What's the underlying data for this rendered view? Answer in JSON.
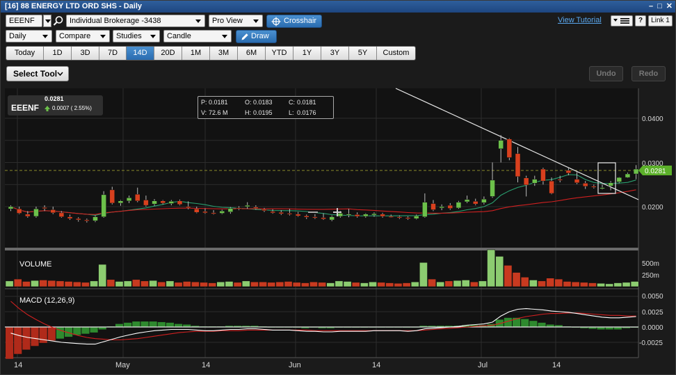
{
  "window": {
    "title": "[16] 88 ENERGY LTD ORD SHS - Daily",
    "controls": [
      "–",
      "□",
      "✕"
    ]
  },
  "toolbar1": {
    "symbol": "EEENF",
    "account": "Individual Brokerage -3438",
    "view": "Pro View",
    "crosshair": "Crosshair",
    "tutorial": "View Tutorial",
    "help": "?",
    "link": "Link 1"
  },
  "toolbar2": {
    "interval": "Daily",
    "compare": "Compare",
    "studies": "Studies",
    "chart_type": "Candle",
    "draw": "Draw"
  },
  "ranges": [
    "Today",
    "1D",
    "3D",
    "7D",
    "14D",
    "20D",
    "1M",
    "3M",
    "6M",
    "YTD",
    "1Y",
    "3Y",
    "5Y",
    "Custom"
  ],
  "active_range": "14D",
  "select_tool": "Select Tool",
  "undo": "Undo",
  "redo": "Redo",
  "symbol_box": {
    "symbol": "EEENF",
    "last": "0.0281",
    "change": "0.0007 ( 2.55%)"
  },
  "ohlc": {
    "p_label": "P:",
    "p": "0.0181",
    "o_label": "O:",
    "o": "0.0183",
    "c_label": "C:",
    "c": "0.0181",
    "v_label": "V:",
    "v": "72.6 M",
    "h_label": "H:",
    "h": "0.0195",
    "l_label": "L:",
    "l": "0.0176"
  },
  "price_axis": [
    "0.0400",
    "0.0300",
    "0.0200"
  ],
  "last_price_tag": "0.0281",
  "volume_label": "VOLUME",
  "volume_axis": [
    "500m",
    "250m"
  ],
  "macd_label": "MACD (12,26,9)",
  "macd_axis": [
    "0.0050",
    "0.0025",
    "0.0000",
    "-0.0025"
  ],
  "x_axis": [
    "14",
    "May",
    "14",
    "Jun",
    "14",
    "Jul",
    "14"
  ],
  "colors": {
    "up": "#6cc04a",
    "down": "#d8401e",
    "accent": "#2a6cb0",
    "macd_line": "#ffffff",
    "signal_line": "#d02020",
    "ma_short": "#2aa070",
    "ma_long": "#d02020"
  },
  "chart_data": {
    "type": "candlestick",
    "price_ylim": [
      0.0155,
      0.0415
    ],
    "candles": [
      [
        0.0195,
        0.0203,
        0.019,
        0.02
      ],
      [
        0.0195,
        0.02,
        0.0183,
        0.0185
      ],
      [
        0.0183,
        0.019,
        0.0175,
        0.0178
      ],
      [
        0.0178,
        0.02,
        0.0175,
        0.0195
      ],
      [
        0.0198,
        0.0203,
        0.019,
        0.0196
      ],
      [
        0.0193,
        0.02,
        0.0183,
        0.0186
      ],
      [
        0.0186,
        0.019,
        0.0175,
        0.0177
      ],
      [
        0.0177,
        0.0182,
        0.017,
        0.0173
      ],
      [
        0.0173,
        0.0176,
        0.0166,
        0.017
      ],
      [
        0.017,
        0.0173,
        0.0164,
        0.0168
      ],
      [
        0.0168,
        0.018,
        0.0165,
        0.0177
      ],
      [
        0.0177,
        0.0235,
        0.0175,
        0.0227
      ],
      [
        0.0238,
        0.0245,
        0.0205,
        0.0208
      ],
      [
        0.0208,
        0.0215,
        0.0202,
        0.0213
      ],
      [
        0.0213,
        0.0225,
        0.0208,
        0.022
      ],
      [
        0.0228,
        0.0243,
        0.021,
        0.0213
      ],
      [
        0.0215,
        0.0225,
        0.02,
        0.0203
      ],
      [
        0.0206,
        0.0217,
        0.0202,
        0.0213
      ],
      [
        0.0213,
        0.0215,
        0.0205,
        0.0208
      ],
      [
        0.0207,
        0.0215,
        0.0203,
        0.0212
      ],
      [
        0.0213,
        0.0216,
        0.0203,
        0.0205
      ],
      [
        0.02,
        0.0212,
        0.0194,
        0.0197
      ],
      [
        0.0195,
        0.02,
        0.0185,
        0.0187
      ],
      [
        0.0189,
        0.0196,
        0.0184,
        0.0186
      ],
      [
        0.0186,
        0.0192,
        0.0182,
        0.0184
      ],
      [
        0.0185,
        0.0193,
        0.0183,
        0.019
      ],
      [
        0.0188,
        0.0199,
        0.0184,
        0.0196
      ],
      [
        0.0197,
        0.0201,
        0.0192,
        0.0195
      ],
      [
        0.02,
        0.021,
        0.0195,
        0.0203
      ],
      [
        0.0199,
        0.0203,
        0.0193,
        0.0196
      ],
      [
        0.0194,
        0.0197,
        0.0188,
        0.0191
      ],
      [
        0.0189,
        0.0194,
        0.0184,
        0.0186
      ],
      [
        0.0187,
        0.0192,
        0.0181,
        0.0184
      ],
      [
        0.0185,
        0.0195,
        0.018,
        0.0183
      ],
      [
        0.0183,
        0.0188,
        0.0177,
        0.0179
      ],
      [
        0.0179,
        0.0182,
        0.0172,
        0.0176
      ],
      [
        0.0177,
        0.0183,
        0.0172,
        0.0175
      ],
      [
        0.0175,
        0.0185,
        0.017,
        0.0172
      ],
      [
        0.017,
        0.018,
        0.0167,
        0.0177
      ],
      [
        0.0178,
        0.019,
        0.0175,
        0.0185
      ],
      [
        0.0181,
        0.0195,
        0.0176,
        0.0183
      ],
      [
        0.0182,
        0.0187,
        0.0175,
        0.0178
      ],
      [
        0.0178,
        0.0185,
        0.0175,
        0.0183
      ],
      [
        0.0181,
        0.0187,
        0.0177,
        0.0184
      ],
      [
        0.0183,
        0.0186,
        0.0175,
        0.0178
      ],
      [
        0.0178,
        0.0182,
        0.0175,
        0.0177
      ],
      [
        0.0177,
        0.018,
        0.0172,
        0.0175
      ],
      [
        0.0175,
        0.0178,
        0.017,
        0.0173
      ],
      [
        0.0173,
        0.0182,
        0.0171,
        0.0179
      ],
      [
        0.0177,
        0.023,
        0.0175,
        0.021
      ],
      [
        0.0207,
        0.0215,
        0.019,
        0.0193
      ],
      [
        0.0197,
        0.0205,
        0.0192,
        0.02
      ],
      [
        0.0203,
        0.0208,
        0.0193,
        0.0196
      ],
      [
        0.0197,
        0.0213,
        0.0195,
        0.021
      ],
      [
        0.0211,
        0.0225,
        0.0208,
        0.0216
      ],
      [
        0.0212,
        0.0218,
        0.0203,
        0.0206
      ],
      [
        0.0209,
        0.0223,
        0.0205,
        0.0217
      ],
      [
        0.0223,
        0.03,
        0.022,
        0.026
      ],
      [
        0.0331,
        0.0362,
        0.03,
        0.035
      ],
      [
        0.0353,
        0.0355,
        0.0305,
        0.0311
      ],
      [
        0.032,
        0.0335,
        0.0255,
        0.0268
      ],
      [
        0.0265,
        0.027,
        0.0223,
        0.0249
      ],
      [
        0.0253,
        0.027,
        0.0247,
        0.0262
      ],
      [
        0.0285,
        0.0288,
        0.025,
        0.0258
      ],
      [
        0.0258,
        0.0266,
        0.0228,
        0.023
      ],
      [
        0.0262,
        0.027,
        0.0255,
        0.026
      ],
      [
        0.0282,
        0.0287,
        0.0271,
        0.0276
      ],
      [
        0.0262,
        0.0278,
        0.0251,
        0.0254
      ],
      [
        0.0253,
        0.0258,
        0.024,
        0.0246
      ],
      [
        0.0246,
        0.025,
        0.0241,
        0.0245
      ],
      [
        0.0242,
        0.025,
        0.0239,
        0.0243
      ],
      [
        0.0247,
        0.0258,
        0.0237,
        0.0254
      ],
      [
        0.0256,
        0.0267,
        0.0253,
        0.0266
      ],
      [
        0.0266,
        0.0277,
        0.0265,
        0.0274
      ],
      [
        0.0274,
        0.0294,
        0.0262,
        0.0285
      ]
    ],
    "volume_ylim": [
      0,
      800
    ],
    "volume": [
      120,
      160,
      110,
      130,
      140,
      130,
      120,
      110,
      100,
      90,
      120,
      470,
      150,
      110,
      120,
      150,
      120,
      130,
      100,
      120,
      90,
      110,
      100,
      90,
      80,
      100,
      110,
      90,
      120,
      100,
      100,
      90,
      100,
      110,
      90,
      80,
      100,
      90,
      80,
      120,
      110,
      90,
      80,
      100,
      90,
      80,
      70,
      80,
      100,
      510,
      160,
      100,
      120,
      130,
      140,
      100,
      120,
      780,
      640,
      450,
      300,
      200,
      140,
      120,
      180,
      160,
      110,
      100,
      90,
      80,
      70,
      60,
      80,
      90,
      110
    ],
    "macd_ylim": [
      -0.0036,
      0.0062
    ],
    "macd": [
      -0.001,
      -0.0014,
      -0.0017,
      -0.0019,
      -0.0021,
      -0.0023,
      -0.0025,
      -0.0026,
      -0.0027,
      -0.0028,
      -0.0028,
      -0.0024,
      -0.002,
      -0.0016,
      -0.0013,
      -0.001,
      -0.0008,
      -0.0006,
      -0.0005,
      -0.0004,
      -0.0004,
      -0.0004,
      -0.0005,
      -0.0006,
      -0.0006,
      -0.0005,
      -0.0004,
      -0.0004,
      -0.0003,
      -0.0003,
      -0.0004,
      -0.0005,
      -0.0005,
      -0.0005,
      -0.0006,
      -0.0007,
      -0.0007,
      -0.0008,
      -0.0008,
      -0.0007,
      -0.0007,
      -0.0007,
      -0.0007,
      -0.0006,
      -0.0006,
      -0.0006,
      -0.0006,
      -0.0007,
      -0.0006,
      -0.0003,
      -0.0002,
      -0.0001,
      0.0,
      0.0001,
      0.0003,
      0.0004,
      0.0005,
      0.0008,
      0.0018,
      0.0025,
      0.0029,
      0.003,
      0.0029,
      0.0028,
      0.0026,
      0.0025,
      0.0024,
      0.0022,
      0.002,
      0.0018,
      0.0016,
      0.0015,
      0.0015,
      0.0016,
      0.0017
    ],
    "signal": [
      0.0042,
      0.003,
      0.002,
      0.0012,
      0.0005,
      -0.0001,
      -0.0006,
      -0.001,
      -0.0014,
      -0.0017,
      -0.0019,
      -0.002,
      -0.0021,
      -0.0021,
      -0.002,
      -0.0019,
      -0.0017,
      -0.0015,
      -0.0013,
      -0.0011,
      -0.0009,
      -0.0008,
      -0.0007,
      -0.0007,
      -0.0007,
      -0.0006,
      -0.0006,
      -0.0006,
      -0.0005,
      -0.0005,
      -0.0005,
      -0.0005,
      -0.0005,
      -0.0005,
      -0.0005,
      -0.0005,
      -0.0006,
      -0.0006,
      -0.0006,
      -0.0006,
      -0.0006,
      -0.0006,
      -0.0006,
      -0.0006,
      -0.0006,
      -0.0006,
      -0.0006,
      -0.0006,
      -0.0006,
      -0.0005,
      -0.0004,
      -0.0003,
      -0.0002,
      -0.0001,
      0.0,
      0.0001,
      0.0002,
      0.0003,
      0.0006,
      0.001,
      0.0014,
      0.0017,
      0.0019,
      0.0021,
      0.0022,
      0.0022,
      0.0023,
      0.0023,
      0.0022,
      0.0021,
      0.002,
      0.0019,
      0.0019,
      0.0018,
      0.0018
    ]
  }
}
